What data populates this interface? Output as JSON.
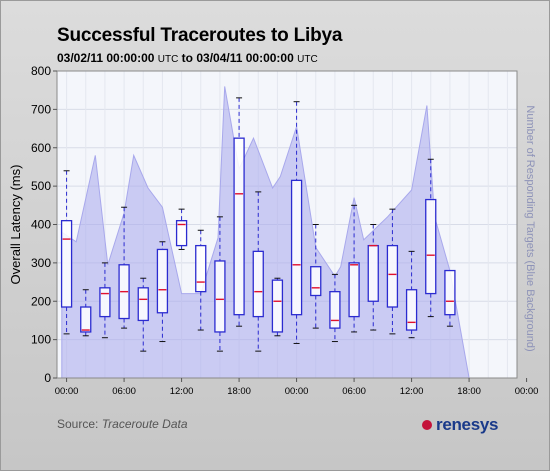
{
  "header": {
    "title": "Successful Traceroutes to Libya",
    "range_start": "03/02/11 00:00:00",
    "tz1": "UTC",
    "to_word": "to",
    "range_end": "03/04/11 00:00:00",
    "tz2": "UTC"
  },
  "footer": {
    "source_label": "Source:",
    "source_name": "Traceroute Data",
    "brand": "renesys"
  },
  "colors": {
    "box": "#2b2bd0",
    "median": "#e0102f",
    "whisker": "#2b2bd0",
    "area": "#a8a8ec",
    "brand": "#1a3a8a",
    "brand_dot": "#c4123a"
  },
  "chart_data": {
    "type": "box",
    "title": "Successful Traceroutes to Libya",
    "ylabel": "Overall Latency (ms)",
    "y2label": "Number of Responding Targets (Blue Background)",
    "ylim": [
      0,
      800
    ],
    "yticks": [
      0,
      100,
      200,
      300,
      400,
      500,
      600,
      700,
      800
    ],
    "xlim": [
      -1,
      47
    ],
    "xticks": [
      {
        "x": 0,
        "label": "00:00"
      },
      {
        "x": 6,
        "label": "06:00"
      },
      {
        "x": 12,
        "label": "12:00"
      },
      {
        "x": 18,
        "label": "18:00"
      },
      {
        "x": 24,
        "label": "00:00"
      },
      {
        "x": 30,
        "label": "06:00"
      },
      {
        "x": 36,
        "label": "12:00"
      },
      {
        "x": 42,
        "label": "18:00"
      },
      {
        "x": 48,
        "label": "00:00"
      }
    ],
    "grid": true,
    "boxes": [
      {
        "x": 0,
        "min": 115,
        "q1": 185,
        "median": 362,
        "q3": 410,
        "max": 540
      },
      {
        "x": 2,
        "min": 110,
        "q1": 120,
        "median": 125,
        "q3": 185,
        "max": 230
      },
      {
        "x": 4,
        "min": 105,
        "q1": 160,
        "median": 220,
        "q3": 235,
        "max": 300
      },
      {
        "x": 6,
        "min": 130,
        "q1": 155,
        "median": 225,
        "q3": 295,
        "max": 445
      },
      {
        "x": 8,
        "min": 70,
        "q1": 150,
        "median": 205,
        "q3": 235,
        "max": 260
      },
      {
        "x": 10,
        "min": 95,
        "q1": 170,
        "median": 230,
        "q3": 335,
        "max": 355
      },
      {
        "x": 12,
        "min": 335,
        "q1": 345,
        "median": 400,
        "q3": 410,
        "max": 440
      },
      {
        "x": 14,
        "min": 125,
        "q1": 225,
        "median": 250,
        "q3": 345,
        "max": 385
      },
      {
        "x": 16,
        "min": 70,
        "q1": 120,
        "median": 205,
        "q3": 305,
        "max": 420
      },
      {
        "x": 18,
        "min": 135,
        "q1": 165,
        "median": 480,
        "q3": 625,
        "max": 730
      },
      {
        "x": 20,
        "min": 70,
        "q1": 160,
        "median": 225,
        "q3": 330,
        "max": 485
      },
      {
        "x": 22,
        "min": 110,
        "q1": 120,
        "median": 200,
        "q3": 255,
        "max": 260
      },
      {
        "x": 24,
        "min": 90,
        "q1": 165,
        "median": 295,
        "q3": 515,
        "max": 720
      },
      {
        "x": 26,
        "min": 130,
        "q1": 215,
        "median": 235,
        "q3": 290,
        "max": 400
      },
      {
        "x": 28,
        "min": 95,
        "q1": 130,
        "median": 150,
        "q3": 225,
        "max": 270
      },
      {
        "x": 30,
        "min": 120,
        "q1": 160,
        "median": 295,
        "q3": 300,
        "max": 450
      },
      {
        "x": 32,
        "min": 125,
        "q1": 200,
        "median": 345,
        "q3": 345,
        "max": 400
      },
      {
        "x": 34,
        "min": 115,
        "q1": 185,
        "median": 270,
        "q3": 345,
        "max": 440
      },
      {
        "x": 36,
        "min": 105,
        "q1": 125,
        "median": 145,
        "q3": 230,
        "max": 330
      },
      {
        "x": 38,
        "min": 160,
        "q1": 220,
        "median": 320,
        "q3": 465,
        "max": 570
      },
      {
        "x": 40,
        "min": 135,
        "q1": 165,
        "median": 200,
        "q3": 280,
        "max": 280
      }
    ],
    "background_area": {
      "y2max": 800,
      "points": [
        [
          -0.5,
          0
        ],
        [
          -0.5,
          380
        ],
        [
          1,
          355
        ],
        [
          3,
          580
        ],
        [
          4.3,
          295
        ],
        [
          6,
          430
        ],
        [
          7,
          580
        ],
        [
          8.5,
          495
        ],
        [
          10,
          445
        ],
        [
          12,
          220
        ],
        [
          14,
          220
        ],
        [
          15.8,
          365
        ],
        [
          16.5,
          760
        ],
        [
          18,
          545
        ],
        [
          19.5,
          625
        ],
        [
          21.5,
          495
        ],
        [
          22.3,
          525
        ],
        [
          24,
          655
        ],
        [
          26,
          340
        ],
        [
          28,
          265
        ],
        [
          28.6,
          290
        ],
        [
          30,
          470
        ],
        [
          31,
          360
        ],
        [
          33.5,
          420
        ],
        [
          36,
          490
        ],
        [
          37.6,
          710
        ],
        [
          38.4,
          420
        ],
        [
          40,
          280
        ],
        [
          42,
          0
        ]
      ]
    }
  }
}
